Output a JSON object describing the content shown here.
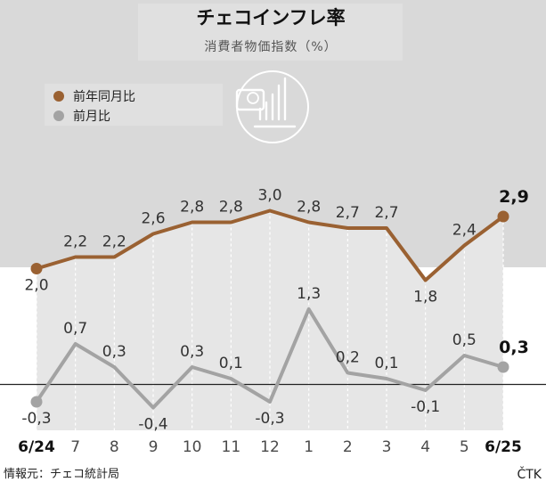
{
  "header": {
    "title": "チェコインフレ率",
    "subtitle": "消費者物価指数（%）"
  },
  "legend": [
    {
      "label": "前年同月比",
      "color": "#9a6132"
    },
    {
      "label": "前月比",
      "color": "#a3a3a3"
    }
  ],
  "icon": "koruna-coin-bar-chart-icon",
  "footer": {
    "source": "情報元：チェコ統計局",
    "credit": "ČTK"
  },
  "chart_data": {
    "type": "line",
    "categories": [
      "6/24",
      "7",
      "8",
      "9",
      "10",
      "11",
      "12",
      "1",
      "2",
      "3",
      "4",
      "5",
      "6/25"
    ],
    "bold_categories": [
      "6/24",
      "6/25"
    ],
    "series": [
      {
        "name": "前年同月比",
        "color": "#9a6132",
        "values": [
          2.0,
          2.2,
          2.2,
          2.6,
          2.8,
          2.8,
          3.0,
          2.8,
          2.7,
          2.7,
          1.8,
          2.4,
          2.9
        ],
        "labels": [
          "2,0",
          "2,2",
          "2,2",
          "2,6",
          "2,8",
          "2,8",
          "3,0",
          "2,8",
          "2,7",
          "2,7",
          "1,8",
          "2,4",
          "2,9"
        ]
      },
      {
        "name": "前月比",
        "color": "#a3a3a3",
        "values": [
          -0.3,
          0.7,
          0.3,
          -0.4,
          0.3,
          0.1,
          -0.3,
          1.3,
          0.2,
          0.1,
          -0.1,
          0.5,
          0.3
        ],
        "labels": [
          "-0,3",
          "0,7",
          "0,3",
          "-0,4",
          "0,3",
          "0,1",
          "-0,3",
          "1,3",
          "0,2",
          "0,1",
          "-0,1",
          "0,5",
          "0,3"
        ]
      }
    ],
    "grid": "vertical-dashed",
    "legend_position": "top-left"
  }
}
